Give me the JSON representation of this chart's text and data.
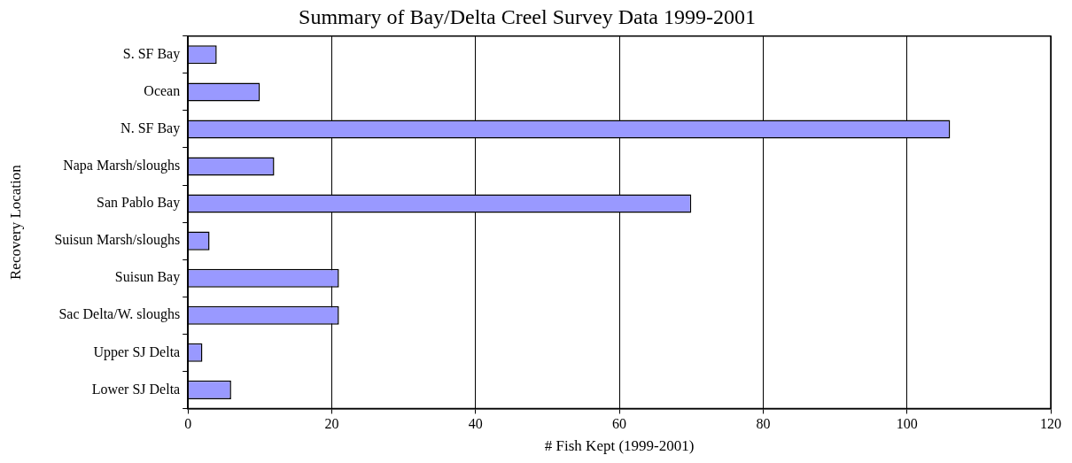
{
  "chart_data": {
    "type": "bar",
    "orientation": "horizontal",
    "title": "Summary of Bay/Delta Creel Survey Data 1999-2001",
    "xlabel": "# Fish Kept (1999-2001)",
    "ylabel": "Recovery Location",
    "categories": [
      "S. SF Bay",
      "Ocean",
      "N. SF Bay",
      "Napa Marsh/sloughs",
      "San Pablo Bay",
      "Suisun Marsh/sloughs",
      "Suisun Bay",
      "Sac Delta/W. sloughs",
      "Upper SJ Delta",
      "Lower SJ Delta"
    ],
    "values": [
      4,
      10,
      106,
      12,
      70,
      3,
      21,
      21,
      2,
      6
    ],
    "color": "#9999ff",
    "xlim": [
      0,
      120
    ],
    "xticks": [
      0,
      20,
      40,
      60,
      80,
      100,
      120
    ],
    "grid": "x",
    "legend": false
  }
}
